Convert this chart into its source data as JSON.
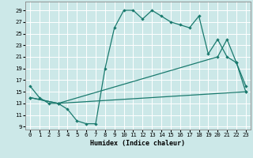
{
  "xlabel": "Humidex (Indice chaleur)",
  "bg_color": "#cce8e8",
  "line_color": "#1a7a6e",
  "grid_color": "#ffffff",
  "xlim": [
    -0.5,
    23.5
  ],
  "ylim": [
    8.5,
    30.5
  ],
  "xticks": [
    0,
    1,
    2,
    3,
    4,
    5,
    6,
    7,
    8,
    9,
    10,
    11,
    12,
    13,
    14,
    15,
    16,
    17,
    18,
    19,
    20,
    21,
    22,
    23
  ],
  "yticks": [
    9,
    11,
    13,
    15,
    17,
    19,
    21,
    23,
    25,
    27,
    29
  ],
  "line1_x": [
    0,
    1,
    2,
    3,
    4,
    5,
    6,
    7,
    8,
    9,
    10,
    11,
    12,
    13,
    14,
    15,
    16,
    17,
    18,
    19,
    20,
    21,
    22,
    23
  ],
  "line1_y": [
    16,
    14,
    13,
    13,
    12,
    10,
    9.5,
    9.5,
    19,
    26,
    29,
    29,
    27.5,
    29,
    28,
    27,
    26.5,
    26,
    28,
    21.5,
    24,
    21,
    20,
    16
  ],
  "line2_x": [
    0,
    3,
    23
  ],
  "line2_y": [
    14,
    13,
    15
  ],
  "line3_x": [
    0,
    3,
    20,
    21,
    22,
    23
  ],
  "line3_y": [
    14,
    13,
    21,
    24,
    20,
    15
  ]
}
